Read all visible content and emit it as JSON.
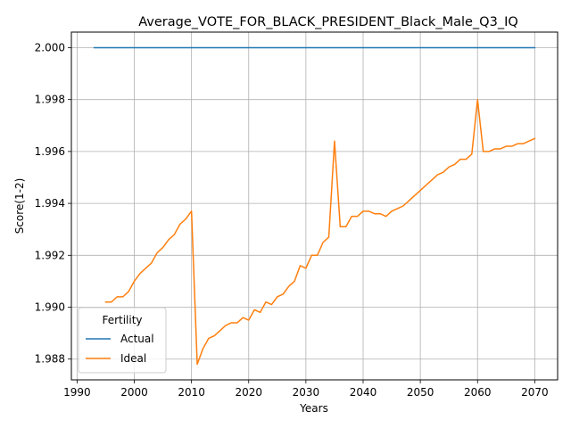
{
  "chart_data": {
    "type": "line",
    "title": "Average_VOTE_FOR_BLACK_PRESIDENT_Black_Male_Q3_IQ",
    "xlabel": "Years",
    "ylabel": "Score(1-2)",
    "xlim": [
      1989,
      2074
    ],
    "ylim": [
      1.9872,
      2.0006
    ],
    "xticks": [
      1990,
      2000,
      2010,
      2020,
      2030,
      2040,
      2050,
      2060,
      2070
    ],
    "yticks": [
      1.988,
      1.99,
      1.992,
      1.994,
      1.996,
      1.998,
      2.0
    ],
    "ytick_labels": [
      "1.988",
      "1.990",
      "1.992",
      "1.994",
      "1.996",
      "1.998",
      "2.000"
    ],
    "grid": true,
    "legend": {
      "title": "Fertility",
      "placement": "lower-left"
    },
    "series": [
      {
        "name": "Actual",
        "color": "#1f77b4",
        "x": [
          1993,
          2070
        ],
        "y": [
          2.0,
          2.0
        ]
      },
      {
        "name": "Ideal",
        "color": "#ff7f0e",
        "x": [
          1995,
          1996,
          1997,
          1998,
          1999,
          2000,
          2001,
          2002,
          2003,
          2004,
          2005,
          2006,
          2007,
          2008,
          2009,
          2010,
          2011,
          2012,
          2013,
          2014,
          2015,
          2016,
          2017,
          2018,
          2019,
          2020,
          2021,
          2022,
          2023,
          2024,
          2025,
          2026,
          2027,
          2028,
          2029,
          2030,
          2031,
          2032,
          2033,
          2034,
          2035,
          2036,
          2037,
          2038,
          2039,
          2040,
          2041,
          2042,
          2043,
          2044,
          2045,
          2046,
          2047,
          2048,
          2049,
          2050,
          2051,
          2052,
          2053,
          2054,
          2055,
          2056,
          2057,
          2058,
          2059,
          2060,
          2061,
          2062,
          2063,
          2064,
          2065,
          2066,
          2067,
          2068,
          2069,
          2070
        ],
        "y": [
          1.9902,
          1.9902,
          1.9904,
          1.9904,
          1.9906,
          1.991,
          1.9913,
          1.9915,
          1.9917,
          1.9921,
          1.9923,
          1.9926,
          1.9928,
          1.9932,
          1.9934,
          1.9937,
          1.9878,
          1.9884,
          1.9888,
          1.9889,
          1.9891,
          1.9893,
          1.9894,
          1.9894,
          1.9896,
          1.9895,
          1.9899,
          1.9898,
          1.9902,
          1.9901,
          1.9904,
          1.9905,
          1.9908,
          1.991,
          1.9916,
          1.9915,
          1.992,
          1.992,
          1.9925,
          1.9927,
          1.9964,
          1.9931,
          1.9931,
          1.9935,
          1.9935,
          1.9937,
          1.9937,
          1.9936,
          1.9936,
          1.9935,
          1.9937,
          1.9938,
          1.9939,
          1.9941,
          1.9943,
          1.9945,
          1.9947,
          1.9949,
          1.9951,
          1.9952,
          1.9954,
          1.9955,
          1.9957,
          1.9957,
          1.9959,
          1.998,
          1.996,
          1.996,
          1.9961,
          1.9961,
          1.9962,
          1.9962,
          1.9963,
          1.9963,
          1.9964,
          1.9965
        ]
      }
    ]
  }
}
